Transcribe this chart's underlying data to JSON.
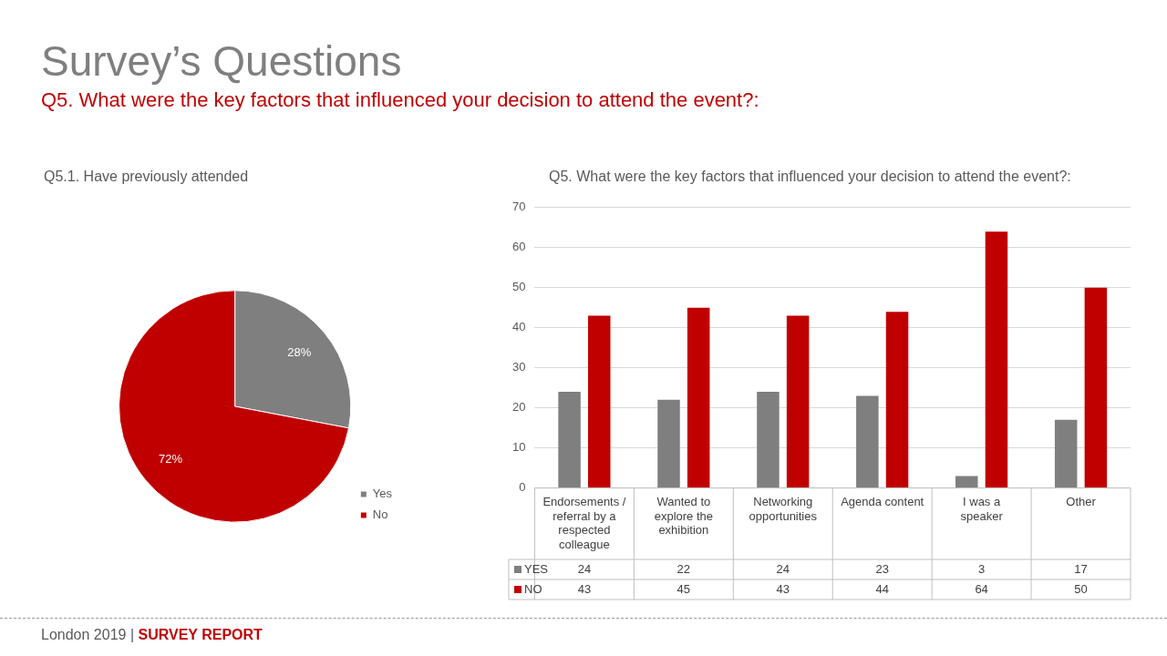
{
  "chart_data": [
    {
      "type": "other",
      "title": "Survey’s Questions",
      "subtitle": "Q5. What were the key factors that influenced your decision to attend the event?:",
      "annotations": [
        "London 2019  |",
        "SURVEY REPORT"
      ]
    },
    {
      "type": "pie",
      "title": "Q5.1. Have previously attended",
      "categories": [
        "Yes",
        "No"
      ],
      "values": [
        28,
        72
      ],
      "colors": [
        "#7f7f7f",
        "#c00000"
      ],
      "value_labels": [
        "28%",
        "72%"
      ],
      "legend": "bottom right"
    },
    {
      "type": "bar",
      "title": "Q5. What were the key factors that influenced your decision to attend the event?:",
      "categories": [
        "Endorsements / referral by a respected colleague",
        "Wanted to explore the exhibition",
        "Networking opportunities",
        "Agenda content",
        "I was a speaker",
        "Other"
      ],
      "series": [
        {
          "name": "YES",
          "color": "#7f7f7f",
          "values": [
            24,
            22,
            24,
            23,
            3,
            17
          ]
        },
        {
          "name": "NO",
          "color": "#c00000",
          "values": [
            43,
            45,
            43,
            44,
            64,
            50
          ]
        }
      ],
      "ylim": [
        0,
        70
      ],
      "yticks": [
        0,
        10,
        20,
        30,
        40,
        50,
        60,
        70
      ],
      "grid": "y",
      "data_labels": true,
      "legend": "bottom"
    }
  ]
}
